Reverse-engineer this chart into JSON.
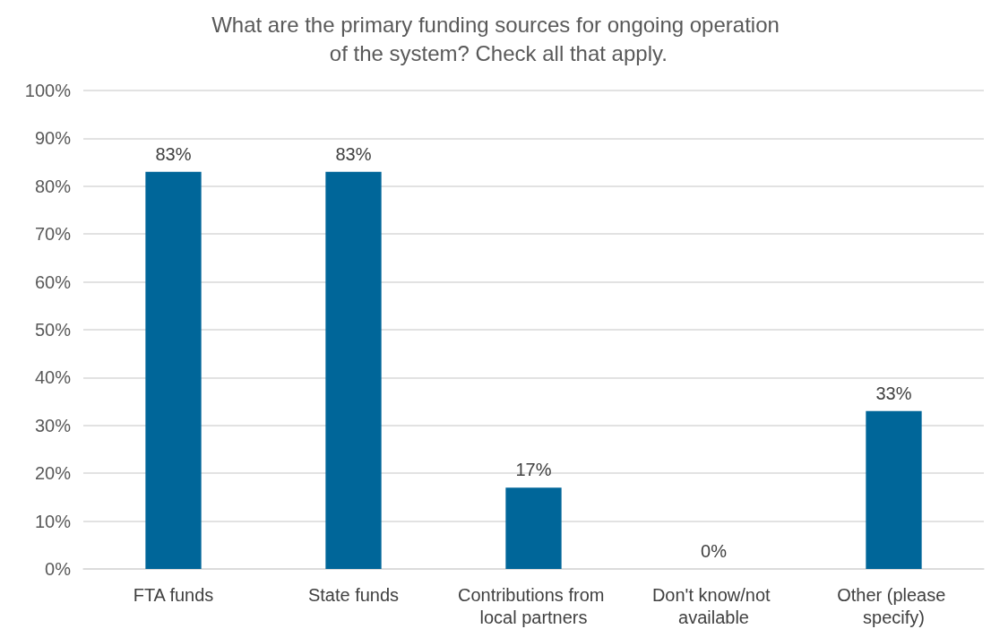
{
  "chart_data": {
    "type": "bar",
    "title": "What are the primary funding sources for ongoing operation of the system? Check all that apply.",
    "categories": [
      "FTA funds",
      "State funds",
      "Contributions from local partners",
      "Don't know/not available",
      "Other (please specify)"
    ],
    "values": [
      83,
      83,
      17,
      0,
      33
    ],
    "value_labels": [
      "83%",
      "83%",
      "17%",
      "0%",
      "33%"
    ],
    "color": "#006699",
    "ylim": [
      0,
      100
    ],
    "yticks": [
      {
        "value": 0,
        "label": "0%"
      },
      {
        "value": 10,
        "label": "10%"
      },
      {
        "value": 20,
        "label": "20%"
      },
      {
        "value": 30,
        "label": "30%"
      },
      {
        "value": 40,
        "label": "40%"
      },
      {
        "value": 50,
        "label": "50%"
      },
      {
        "value": 60,
        "label": "60%"
      },
      {
        "value": 70,
        "label": "70%"
      },
      {
        "value": 80,
        "label": "80%"
      },
      {
        "value": 90,
        "label": "90%"
      },
      {
        "value": 100,
        "label": "100%"
      }
    ],
    "grid": "y"
  }
}
